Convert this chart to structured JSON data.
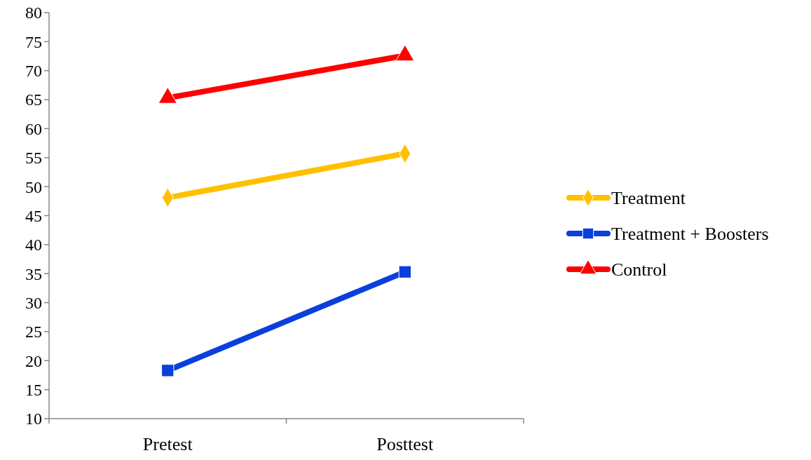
{
  "chart_data": {
    "type": "line",
    "categories": [
      "Pretest",
      "Posttest"
    ],
    "series": [
      {
        "name": "Treatment",
        "color": "#ffc000",
        "values": [
          48.1,
          55.7
        ],
        "marker": "diamond"
      },
      {
        "name": "Treatment + Boosters",
        "color": "#0a3fdc",
        "values": [
          18.3,
          35.3
        ],
        "marker": "square"
      },
      {
        "name": "Control",
        "color": "#ff0000",
        "values": [
          65.3,
          72.6
        ],
        "marker": "triangle"
      }
    ],
    "ylim": [
      10,
      80
    ],
    "yticks": [
      10,
      15,
      20,
      25,
      30,
      35,
      40,
      45,
      50,
      55,
      60,
      65,
      70,
      75,
      80
    ],
    "grid": false,
    "legend": "right",
    "line_style": "solid"
  }
}
